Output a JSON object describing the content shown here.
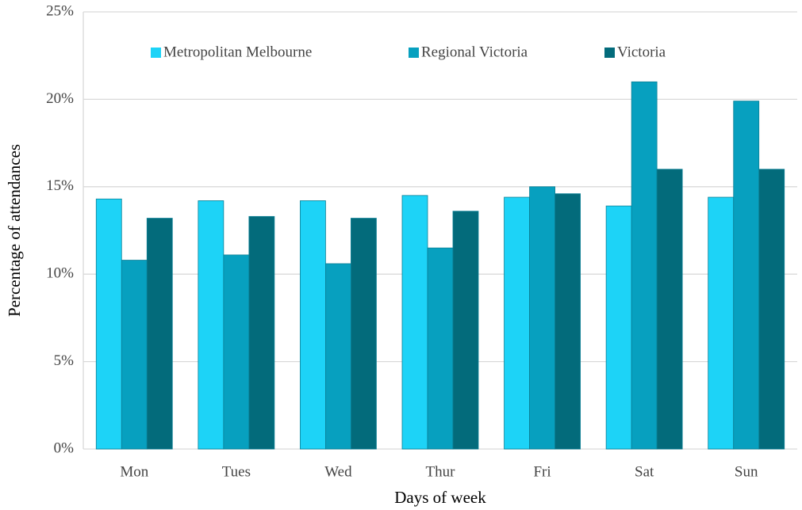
{
  "chart_data": {
    "type": "bar",
    "x_label": "Days of week",
    "y_label": "Percentage of attendances",
    "categories": [
      "Mon",
      "Tues",
      "Wed",
      "Thur",
      "Fri",
      "Sat",
      "Sun"
    ],
    "series": [
      {
        "name": "Metropolitan Melbourne",
        "color": "#1dd3f7",
        "values": [
          14.3,
          14.2,
          14.2,
          14.5,
          14.4,
          13.9,
          14.4
        ]
      },
      {
        "name": "Regional Victoria",
        "color": "#07a0bf",
        "values": [
          10.8,
          11.1,
          10.6,
          11.5,
          15.0,
          21.0,
          19.9
        ]
      },
      {
        "name": "Victoria",
        "color": "#036b7b",
        "values": [
          13.2,
          13.3,
          13.2,
          13.6,
          14.6,
          16.0,
          16.0
        ]
      }
    ],
    "ylim": [
      0,
      25
    ],
    "yticks": [
      {
        "value": 0,
        "label": "0%"
      },
      {
        "value": 5,
        "label": "5%"
      },
      {
        "value": 10,
        "label": "10%"
      },
      {
        "value": 15,
        "label": "15%"
      },
      {
        "value": 20,
        "label": "20%"
      },
      {
        "value": 25,
        "label": "25%"
      }
    ],
    "grid": true,
    "legend": "top"
  }
}
